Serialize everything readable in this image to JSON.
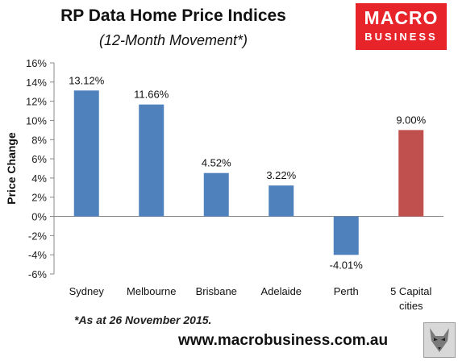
{
  "header": {
    "title": "RP Data Home Price Indices",
    "subtitle": "(12-Month Movement*)"
  },
  "logo": {
    "line1": "MACRO",
    "line2": "BUSINESS",
    "color": "#e8242b"
  },
  "footer": {
    "note": "*As at 26 November 2015.",
    "website": "www.macrobusiness.com.au"
  },
  "chart_data": {
    "type": "bar",
    "categories": [
      "Sydney",
      "Melbourne",
      "Brisbane",
      "Adelaide",
      "Perth",
      "5 Capital cities"
    ],
    "values": [
      13.12,
      11.66,
      4.52,
      3.22,
      -4.01,
      9.0
    ],
    "data_labels": [
      "13.12%",
      "11.66%",
      "4.52%",
      "3.22%",
      "-4.01%",
      "9.00%"
    ],
    "colors": [
      "#4f81bd",
      "#4f81bd",
      "#4f81bd",
      "#4f81bd",
      "#4f81bd",
      "#c0504d"
    ],
    "ylabel": "Price Change",
    "ylim": [
      -6,
      16
    ],
    "yticks": [
      -6,
      -4,
      -2,
      0,
      2,
      4,
      6,
      8,
      10,
      12,
      14,
      16
    ],
    "ytick_labels": [
      "-6%",
      "-4%",
      "-2%",
      "0%",
      "2%",
      "4%",
      "6%",
      "8%",
      "10%",
      "12%",
      "14%",
      "16%"
    ],
    "grid": false,
    "legend": "none"
  }
}
